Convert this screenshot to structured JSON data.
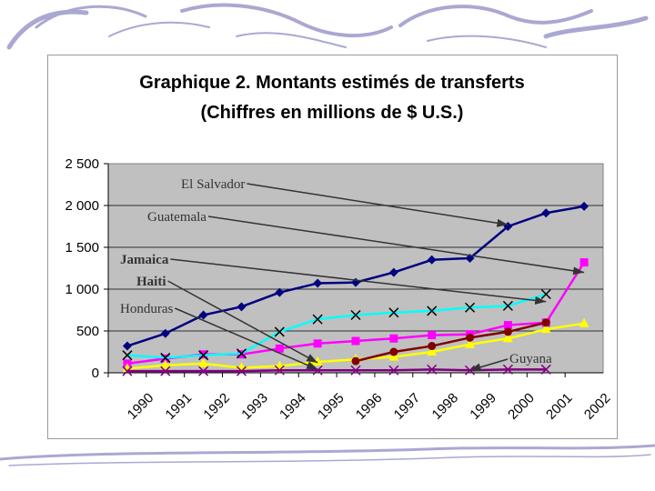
{
  "chart_data": {
    "type": "line",
    "title": "Graphique 2. Montants estimés de transferts",
    "subtitle": "(Chiffres en millions de $ U.S.)",
    "xlabel": "",
    "ylabel": "",
    "categories": [
      "1990",
      "1991",
      "1992",
      "1993",
      "1994",
      "1995",
      "1996",
      "1997",
      "1998",
      "1999",
      "2000",
      "2001",
      "2002"
    ],
    "ylim": [
      0,
      2500
    ],
    "yticks": [
      0,
      500,
      1000,
      1500,
      2000,
      2500
    ],
    "ytick_labels": [
      "0",
      "500",
      "1 000",
      "1 500",
      "2 000",
      "2 500"
    ],
    "grid": true,
    "legend": "none",
    "plot_background": "#c0c0c0",
    "series": [
      {
        "color": "#000080",
        "marker": "diamond",
        "values": [
          320,
          470,
          690,
          790,
          960,
          1070,
          1080,
          1200,
          1350,
          1370,
          1750,
          1910,
          1990
        ]
      },
      {
        "color": "#ff00ff",
        "marker": "square",
        "values": [
          110,
          170,
          220,
          220,
          290,
          350,
          380,
          410,
          450,
          460,
          570,
          600,
          1320
        ]
      },
      {
        "color": "#00ffff",
        "marker": "x",
        "values": [
          210,
          180,
          210,
          230,
          490,
          640,
          690,
          720,
          740,
          780,
          800,
          940,
          null
        ]
      },
      {
        "color": "#ffff00",
        "marker": "triangle",
        "values": [
          50,
          90,
          110,
          60,
          80,
          130,
          160,
          190,
          250,
          340,
          410,
          520,
          590
        ]
      },
      {
        "color": "#800000",
        "marker": "circle",
        "values": [
          null,
          null,
          null,
          null,
          null,
          null,
          140,
          250,
          320,
          420,
          490,
          600,
          null
        ]
      },
      {
        "color": "#800080",
        "marker": "x",
        "values": [
          20,
          20,
          20,
          20,
          30,
          30,
          30,
          30,
          40,
          30,
          40,
          40,
          null
        ]
      }
    ],
    "annotations": [
      {
        "text": "El Salvador",
        "bold": false,
        "target": [
          10,
          1770
        ]
      },
      {
        "text": "Guatemala",
        "bold": false,
        "target": [
          12,
          1200
        ]
      },
      {
        "text": "Jamaica",
        "bold": true,
        "target": [
          11,
          850
        ]
      },
      {
        "text": "Haiti",
        "bold": true,
        "target": [
          5,
          120
        ]
      },
      {
        "text": "Honduras",
        "bold": false,
        "target": [
          5,
          40
        ]
      },
      {
        "text": "Guyana",
        "bold": false,
        "target": [
          9,
          30
        ]
      }
    ]
  },
  "colors": {
    "deco_stroke": "#8e8cc4",
    "frame": "#9a9a9a",
    "axis": "#000000",
    "gridline": "#000000",
    "arrow": "#333333"
  }
}
